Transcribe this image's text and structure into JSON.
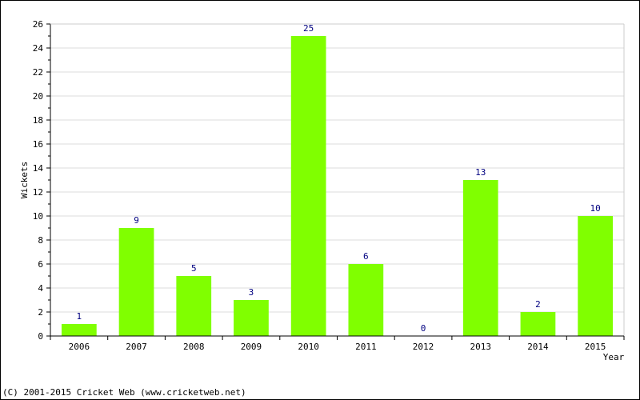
{
  "chart_data": {
    "type": "bar",
    "xlabel": "Year",
    "ylabel": "Wickets",
    "ylim": [
      0,
      26
    ],
    "ytick_step": 2,
    "categories": [
      "2006",
      "2007",
      "2008",
      "2009",
      "2010",
      "2011",
      "2012",
      "2013",
      "2014",
      "2015"
    ],
    "values": [
      1,
      9,
      5,
      3,
      25,
      6,
      0,
      13,
      2,
      10
    ],
    "data_labels": [
      "1",
      "9",
      "5",
      "3",
      "25",
      "6",
      "0",
      "13",
      "2",
      "10"
    ],
    "grid": true,
    "legend": "none",
    "colors": {
      "bar": "#80ff00",
      "data_label": "#000080",
      "grid": "#dddddd",
      "axis": "#000000"
    }
  },
  "footer": {
    "copyright": "(C) 2001-2015 Cricket Web (www.cricketweb.net)"
  }
}
